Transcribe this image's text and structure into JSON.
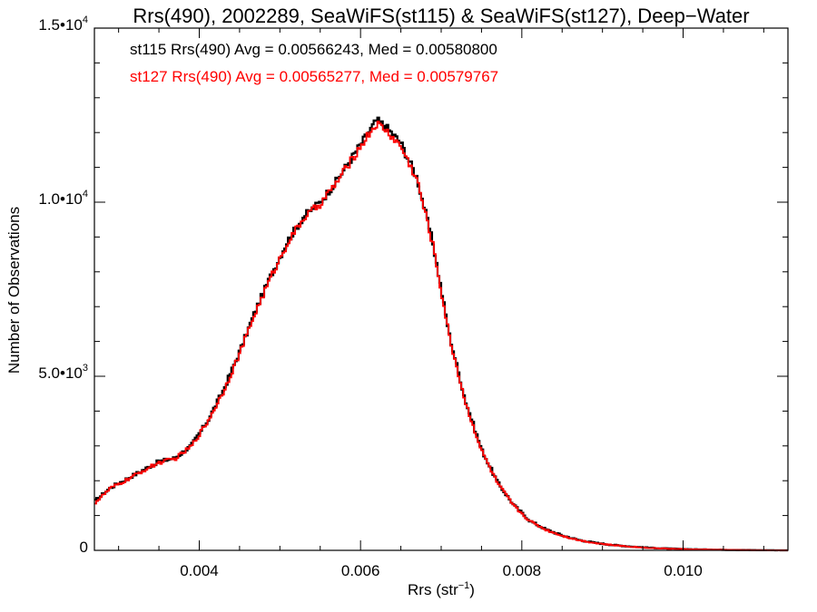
{
  "chart_data": {
    "type": "line",
    "title": "Rrs(490), 2002289, SeaWiFS(st115) & SeaWiFS(st127), Deep−Water",
    "xlabel": {
      "base": "Rrs (str",
      "sup": "−1",
      "close": ")"
    },
    "ylabel": "Number of Observations",
    "xlim": [
      0.0027,
      0.0113
    ],
    "ylim": [
      0,
      15000
    ],
    "xticks": [
      {
        "value": 0.004,
        "label": "0.004"
      },
      {
        "value": 0.006,
        "label": "0.006"
      },
      {
        "value": 0.008,
        "label": "0.008"
      },
      {
        "value": 0.01,
        "label": "0.010"
      }
    ],
    "yticks": [
      {
        "value": 0,
        "base": "0",
        "sup": ""
      },
      {
        "value": 5000,
        "base": "5.0•10",
        "sup": "3"
      },
      {
        "value": 10000,
        "base": "1.0•10",
        "sup": "4"
      },
      {
        "value": 15000,
        "base": "1.5•10",
        "sup": "4"
      }
    ],
    "annotations": [
      {
        "text": "st115 Rrs(490) Avg = 0.00566243, Med = 0.00580800",
        "color": "#000000"
      },
      {
        "text": "st127 Rrs(490) Avg = 0.00565277, Med = 0.00579767",
        "color": "#ff0000"
      }
    ],
    "series": [
      {
        "color": "#000000",
        "x": [
          0.0027,
          0.0029,
          0.0031,
          0.0033,
          0.0035,
          0.0037,
          0.0039,
          0.0041,
          0.0043,
          0.0045,
          0.0047,
          0.0049,
          0.0051,
          0.0053,
          0.0055,
          0.0057,
          0.0059,
          0.0061,
          0.0062,
          0.0063,
          0.0065,
          0.0067,
          0.0069,
          0.0071,
          0.0073,
          0.0075,
          0.0077,
          0.0079,
          0.0081,
          0.0083,
          0.0085,
          0.0087,
          0.0089,
          0.0091,
          0.0093,
          0.0095,
          0.0097,
          0.0099,
          0.0101,
          0.0105,
          0.0109,
          0.0113
        ],
        "y": [
          1400,
          1800,
          2050,
          2300,
          2550,
          2650,
          3000,
          3700,
          4600,
          5700,
          6900,
          7950,
          8900,
          9600,
          10000,
          10600,
          11300,
          12000,
          12350,
          12200,
          11700,
          10700,
          8800,
          6200,
          4300,
          2900,
          1950,
          1300,
          850,
          600,
          430,
          300,
          220,
          160,
          120,
          85,
          60,
          45,
          30,
          15,
          5,
          0
        ]
      },
      {
        "color": "#ff0000",
        "x": [
          0.0027,
          0.0029,
          0.0031,
          0.0033,
          0.0035,
          0.0037,
          0.0039,
          0.0041,
          0.0043,
          0.0045,
          0.0047,
          0.0049,
          0.0051,
          0.0053,
          0.0055,
          0.0057,
          0.0059,
          0.0061,
          0.0062,
          0.0063,
          0.0065,
          0.0067,
          0.0069,
          0.0071,
          0.0073,
          0.0075,
          0.0077,
          0.0079,
          0.0081,
          0.0083,
          0.0085,
          0.0087,
          0.0089,
          0.0091,
          0.0093,
          0.0095,
          0.0097,
          0.0099,
          0.0101,
          0.0105,
          0.0109,
          0.0113
        ],
        "y": [
          1350,
          1780,
          2020,
          2280,
          2520,
          2630,
          2980,
          3680,
          4560,
          5650,
          6850,
          7900,
          8850,
          9550,
          9950,
          10550,
          11250,
          11950,
          12250,
          12100,
          11600,
          10650,
          8750,
          6150,
          4250,
          2870,
          1920,
          1280,
          840,
          590,
          420,
          295,
          215,
          155,
          115,
          82,
          58,
          42,
          28,
          14,
          5,
          0
        ]
      }
    ]
  }
}
